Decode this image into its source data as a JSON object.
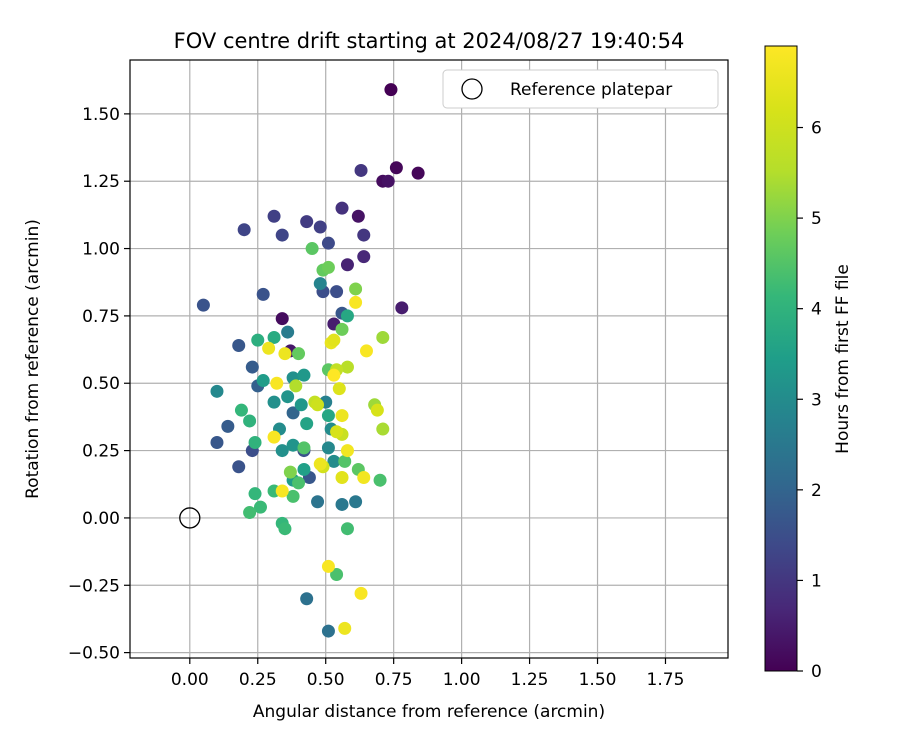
{
  "chart_data": {
    "type": "scatter",
    "title": "FOV centre drift starting at 2024/08/27 19:40:54",
    "xlabel": "Angular distance from reference (arcmin)",
    "ylabel": "Rotation from reference (arcmin)",
    "xlim": [
      -0.22,
      1.98
    ],
    "ylim": [
      -0.52,
      1.7
    ],
    "x_ticks": [
      0.0,
      0.25,
      0.5,
      0.75,
      1.0,
      1.25,
      1.5,
      1.75
    ],
    "x_tick_labels": [
      "0.00",
      "0.25",
      "0.50",
      "0.75",
      "1.00",
      "1.25",
      "1.50",
      "1.75"
    ],
    "y_ticks": [
      -0.5,
      -0.25,
      0.0,
      0.25,
      0.5,
      0.75,
      1.0,
      1.25,
      1.5
    ],
    "y_tick_labels": [
      "−0.50",
      "−0.25",
      "0.00",
      "0.25",
      "0.50",
      "0.75",
      "1.00",
      "1.25",
      "1.50"
    ],
    "grid": true,
    "legend": {
      "position": "top-right",
      "entries": [
        "Reference platepar"
      ]
    },
    "reference_point": {
      "x": 0.0,
      "y": 0.0,
      "marker": "open-circle"
    },
    "colorbar": {
      "label": "Hours from first FF file",
      "min": 0,
      "max": 6.9,
      "ticks": [
        0,
        1,
        2,
        3,
        4,
        5,
        6
      ],
      "tick_labels": [
        "0",
        "1",
        "2",
        "3",
        "4",
        "5",
        "6"
      ],
      "colormap": "viridis"
    },
    "series": [
      {
        "c_unit": "hours",
        "points": [
          {
            "x": 0.74,
            "y": 1.59,
            "c": 0.0
          },
          {
            "x": 0.76,
            "y": 1.3,
            "c": 0.1
          },
          {
            "x": 0.84,
            "y": 1.28,
            "c": 0.1
          },
          {
            "x": 0.71,
            "y": 1.25,
            "c": 0.2
          },
          {
            "x": 0.73,
            "y": 1.25,
            "c": 0.3
          },
          {
            "x": 0.62,
            "y": 1.12,
            "c": 0.3
          },
          {
            "x": 0.78,
            "y": 0.78,
            "c": 0.5
          },
          {
            "x": 0.34,
            "y": 0.74,
            "c": 0.2
          },
          {
            "x": 0.37,
            "y": 0.62,
            "c": 0.4
          },
          {
            "x": 0.53,
            "y": 0.72,
            "c": 0.5
          },
          {
            "x": 0.58,
            "y": 0.94,
            "c": 0.6
          },
          {
            "x": 0.64,
            "y": 0.97,
            "c": 0.7
          },
          {
            "x": 0.56,
            "y": 1.15,
            "c": 0.9
          },
          {
            "x": 0.63,
            "y": 1.29,
            "c": 1.0
          },
          {
            "x": 0.64,
            "y": 1.05,
            "c": 1.0
          },
          {
            "x": 0.43,
            "y": 1.1,
            "c": 1.1
          },
          {
            "x": 0.48,
            "y": 1.08,
            "c": 1.2
          },
          {
            "x": 0.31,
            "y": 1.12,
            "c": 1.2
          },
          {
            "x": 0.34,
            "y": 1.05,
            "c": 1.3
          },
          {
            "x": 0.2,
            "y": 1.07,
            "c": 1.3
          },
          {
            "x": 0.51,
            "y": 1.02,
            "c": 1.4
          },
          {
            "x": 0.49,
            "y": 0.84,
            "c": 1.5
          },
          {
            "x": 0.54,
            "y": 0.84,
            "c": 1.5
          },
          {
            "x": 0.05,
            "y": 0.79,
            "c": 1.6
          },
          {
            "x": 0.27,
            "y": 0.83,
            "c": 1.6
          },
          {
            "x": 0.56,
            "y": 0.76,
            "c": 1.7
          },
          {
            "x": 0.18,
            "y": 0.64,
            "c": 1.7
          },
          {
            "x": 0.23,
            "y": 0.56,
            "c": 1.8
          },
          {
            "x": 0.25,
            "y": 0.49,
            "c": 1.9
          },
          {
            "x": 0.14,
            "y": 0.34,
            "c": 1.8
          },
          {
            "x": 0.1,
            "y": 0.28,
            "c": 1.7
          },
          {
            "x": 0.18,
            "y": 0.19,
            "c": 1.6
          },
          {
            "x": 0.23,
            "y": 0.25,
            "c": 1.5
          },
          {
            "x": 0.42,
            "y": 0.25,
            "c": 1.6
          },
          {
            "x": 0.44,
            "y": 0.15,
            "c": 1.7
          },
          {
            "x": 0.38,
            "y": 0.39,
            "c": 2.0
          },
          {
            "x": 0.43,
            "y": -0.3,
            "c": 2.3
          },
          {
            "x": 0.51,
            "y": -0.42,
            "c": 2.3
          },
          {
            "x": 0.47,
            "y": 0.06,
            "c": 2.4
          },
          {
            "x": 0.56,
            "y": 0.05,
            "c": 2.5
          },
          {
            "x": 0.61,
            "y": 0.06,
            "c": 2.5
          },
          {
            "x": 0.36,
            "y": 0.69,
            "c": 2.6
          },
          {
            "x": 0.48,
            "y": 0.87,
            "c": 2.8
          },
          {
            "x": 0.5,
            "y": 0.43,
            "c": 2.7
          },
          {
            "x": 0.51,
            "y": 0.26,
            "c": 2.9
          },
          {
            "x": 0.53,
            "y": 0.21,
            "c": 3.0
          },
          {
            "x": 0.52,
            "y": 0.33,
            "c": 3.0
          },
          {
            "x": 0.1,
            "y": 0.47,
            "c": 2.9
          },
          {
            "x": 0.38,
            "y": 0.52,
            "c": 3.1
          },
          {
            "x": 0.36,
            "y": 0.45,
            "c": 3.2
          },
          {
            "x": 0.31,
            "y": 0.43,
            "c": 3.1
          },
          {
            "x": 0.33,
            "y": 0.33,
            "c": 3.0
          },
          {
            "x": 0.34,
            "y": 0.25,
            "c": 3.1
          },
          {
            "x": 0.38,
            "y": 0.27,
            "c": 3.2
          },
          {
            "x": 0.41,
            "y": 0.42,
            "c": 3.3
          },
          {
            "x": 0.42,
            "y": 0.53,
            "c": 3.3
          },
          {
            "x": 0.27,
            "y": 0.51,
            "c": 3.4
          },
          {
            "x": 0.38,
            "y": 0.14,
            "c": 3.4
          },
          {
            "x": 0.42,
            "y": 0.18,
            "c": 3.5
          },
          {
            "x": 0.43,
            "y": 0.35,
            "c": 3.6
          },
          {
            "x": 0.51,
            "y": 0.38,
            "c": 3.7
          },
          {
            "x": 0.58,
            "y": 0.75,
            "c": 3.7
          },
          {
            "x": 0.31,
            "y": 0.67,
            "c": 3.8
          },
          {
            "x": 0.25,
            "y": 0.66,
            "c": 3.9
          },
          {
            "x": 0.24,
            "y": 0.28,
            "c": 4.0
          },
          {
            "x": 0.22,
            "y": 0.36,
            "c": 4.0
          },
          {
            "x": 0.19,
            "y": 0.4,
            "c": 4.1
          },
          {
            "x": 0.24,
            "y": 0.09,
            "c": 4.1
          },
          {
            "x": 0.26,
            "y": 0.04,
            "c": 4.2
          },
          {
            "x": 0.22,
            "y": 0.02,
            "c": 4.3
          },
          {
            "x": 0.34,
            "y": -0.02,
            "c": 4.1
          },
          {
            "x": 0.35,
            "y": -0.04,
            "c": 4.2
          },
          {
            "x": 0.31,
            "y": 0.1,
            "c": 4.2
          },
          {
            "x": 0.38,
            "y": 0.08,
            "c": 4.4
          },
          {
            "x": 0.4,
            "y": 0.13,
            "c": 4.4
          },
          {
            "x": 0.42,
            "y": 0.26,
            "c": 4.5
          },
          {
            "x": 0.57,
            "y": 0.21,
            "c": 4.5
          },
          {
            "x": 0.62,
            "y": 0.18,
            "c": 4.6
          },
          {
            "x": 0.7,
            "y": 0.14,
            "c": 4.4
          },
          {
            "x": 0.58,
            "y": -0.04,
            "c": 4.3
          },
          {
            "x": 0.54,
            "y": -0.21,
            "c": 4.4
          },
          {
            "x": 0.45,
            "y": 1.0,
            "c": 4.6
          },
          {
            "x": 0.49,
            "y": 0.92,
            "c": 4.7
          },
          {
            "x": 0.51,
            "y": 0.93,
            "c": 4.8
          },
          {
            "x": 0.4,
            "y": 0.61,
            "c": 4.7
          },
          {
            "x": 0.51,
            "y": 0.55,
            "c": 4.6
          },
          {
            "x": 0.56,
            "y": 0.7,
            "c": 4.8
          },
          {
            "x": 0.61,
            "y": 0.85,
            "c": 5.0
          },
          {
            "x": 0.37,
            "y": 0.17,
            "c": 5.0
          },
          {
            "x": 0.71,
            "y": 0.67,
            "c": 5.3
          },
          {
            "x": 0.68,
            "y": 0.42,
            "c": 5.3
          },
          {
            "x": 0.71,
            "y": 0.33,
            "c": 5.4
          },
          {
            "x": 0.58,
            "y": 0.56,
            "c": 5.6
          },
          {
            "x": 0.54,
            "y": 0.55,
            "c": 5.8
          },
          {
            "x": 0.39,
            "y": 0.49,
            "c": 5.5
          },
          {
            "x": 0.46,
            "y": 0.43,
            "c": 5.8
          },
          {
            "x": 0.47,
            "y": 0.42,
            "c": 6.0
          },
          {
            "x": 0.56,
            "y": 0.31,
            "c": 5.9
          },
          {
            "x": 0.49,
            "y": 0.19,
            "c": 6.1
          },
          {
            "x": 0.54,
            "y": 0.32,
            "c": 6.2
          },
          {
            "x": 0.55,
            "y": 0.48,
            "c": 6.3
          },
          {
            "x": 0.69,
            "y": 0.4,
            "c": 6.2
          },
          {
            "x": 0.56,
            "y": 0.38,
            "c": 6.6
          },
          {
            "x": 0.58,
            "y": 0.25,
            "c": 6.7
          },
          {
            "x": 0.52,
            "y": 0.65,
            "c": 6.5
          },
          {
            "x": 0.53,
            "y": 0.66,
            "c": 6.4
          },
          {
            "x": 0.61,
            "y": 0.8,
            "c": 6.8
          },
          {
            "x": 0.65,
            "y": 0.62,
            "c": 6.8
          },
          {
            "x": 0.32,
            "y": 0.5,
            "c": 6.8
          },
          {
            "x": 0.29,
            "y": 0.63,
            "c": 6.6
          },
          {
            "x": 0.35,
            "y": 0.61,
            "c": 6.6
          },
          {
            "x": 0.31,
            "y": 0.3,
            "c": 6.8
          },
          {
            "x": 0.34,
            "y": 0.1,
            "c": 6.8
          },
          {
            "x": 0.48,
            "y": 0.2,
            "c": 6.6
          },
          {
            "x": 0.56,
            "y": 0.15,
            "c": 6.4
          },
          {
            "x": 0.64,
            "y": 0.15,
            "c": 6.7
          },
          {
            "x": 0.51,
            "y": -0.18,
            "c": 6.8
          },
          {
            "x": 0.63,
            "y": -0.28,
            "c": 6.8
          },
          {
            "x": 0.57,
            "y": -0.41,
            "c": 6.6
          },
          {
            "x": 0.53,
            "y": 0.53,
            "c": 6.9
          }
        ]
      }
    ]
  }
}
